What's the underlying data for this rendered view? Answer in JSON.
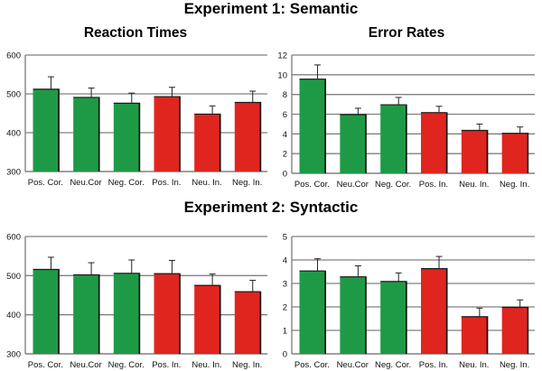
{
  "experiment1_title": "Experiment 1: Semantic",
  "experiment2_title": "Experiment 2: Syntactic",
  "reaction_times_title": "Reaction Times",
  "error_rates_title": "Error Rates",
  "colors": {
    "green": "#1e9a46",
    "red": "#e0251f",
    "axis": "#7a7a7a",
    "grid": "#808080"
  },
  "chart_data": [
    {
      "id": "exp1-rt",
      "type": "bar",
      "title": "Reaction Times",
      "categories": [
        "Pos. Cor.",
        "Neu.Cor",
        "Neg. Cor.",
        "Pos. In.",
        "Neu. In.",
        "Neg. In."
      ],
      "values": [
        513,
        492,
        477,
        494,
        449,
        479
      ],
      "errors": [
        31,
        23,
        25,
        23,
        20,
        28
      ],
      "bar_colors": [
        "green",
        "green",
        "green",
        "red",
        "red",
        "red"
      ],
      "ylim": [
        300,
        600
      ],
      "yticks": [
        300,
        400,
        500,
        600
      ],
      "xlabel": "",
      "ylabel": ""
    },
    {
      "id": "exp1-er",
      "type": "bar",
      "title": "Error Rates",
      "categories": [
        "Pos. Cor.",
        "Neu.Cor",
        "Neg. Cor.",
        "Pos. In.",
        "Neu. In.",
        "Neg. In."
      ],
      "values": [
        9.6,
        6.0,
        7.0,
        6.2,
        4.4,
        4.1
      ],
      "errors": [
        1.4,
        0.6,
        0.7,
        0.6,
        0.6,
        0.6
      ],
      "bar_colors": [
        "green",
        "green",
        "green",
        "red",
        "red",
        "red"
      ],
      "ylim": [
        0,
        12
      ],
      "yticks": [
        0,
        2,
        4,
        6,
        8,
        10,
        12
      ],
      "xlabel": "",
      "ylabel": ""
    },
    {
      "id": "exp2-rt",
      "type": "bar",
      "title": "",
      "categories": [
        "Pos. Cor.",
        "Neu.Cor",
        "Neg. Cor.",
        "Pos. In.",
        "Neu. In.",
        "Neg. In."
      ],
      "values": [
        517,
        503,
        507,
        506,
        476,
        460
      ],
      "errors": [
        30,
        30,
        33,
        33,
        28,
        28
      ],
      "bar_colors": [
        "green",
        "green",
        "green",
        "red",
        "red",
        "red"
      ],
      "ylim": [
        300,
        600
      ],
      "yticks": [
        300,
        400,
        500,
        600
      ],
      "xlabel": "",
      "ylabel": ""
    },
    {
      "id": "exp2-er",
      "type": "bar",
      "title": "",
      "categories": [
        "Pos. Cor.",
        "Neu.Cor",
        "Neg. Cor.",
        "Pos. In.",
        "Neu. In.",
        "Neg. In."
      ],
      "values": [
        3.55,
        3.3,
        3.1,
        3.65,
        1.6,
        2.0
      ],
      "errors": [
        0.5,
        0.45,
        0.35,
        0.5,
        0.35,
        0.3
      ],
      "bar_colors": [
        "green",
        "green",
        "green",
        "red",
        "red",
        "red"
      ],
      "ylim": [
        0,
        5
      ],
      "yticks": [
        0,
        1,
        2,
        3,
        4,
        5
      ],
      "xlabel": "",
      "ylabel": ""
    }
  ]
}
